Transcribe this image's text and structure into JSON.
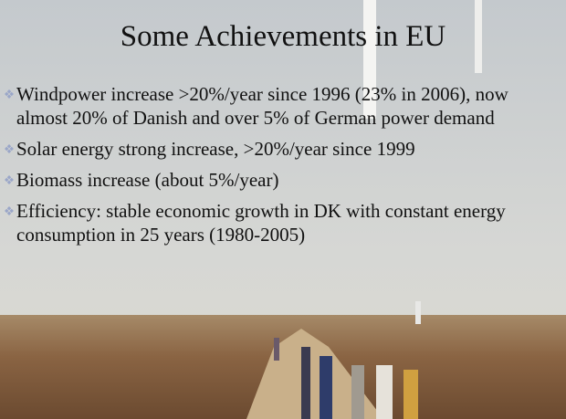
{
  "title": "Some Achievements in EU",
  "bullets": [
    "Windpower increase >20%/year since 1996 (23% in 2006), now almost 20% of Danish and over 5% of German power demand",
    "Solar energy strong increase, >20%/year since 1999",
    "Biomass increase (about 5%/year)",
    "Efficiency: stable economic growth in DK with constant energy consumption in 25 years (1980-2005)"
  ]
}
